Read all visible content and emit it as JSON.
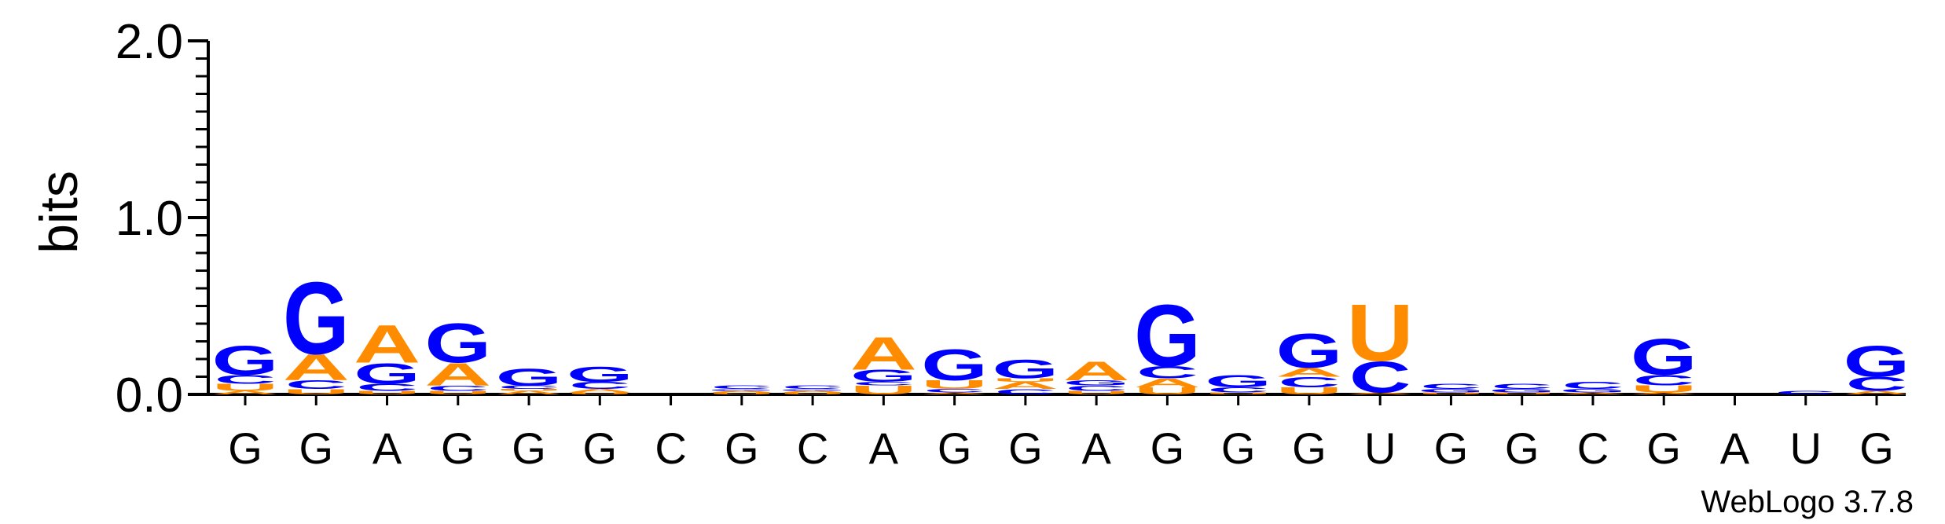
{
  "chart_data": {
    "type": "sequence-logo",
    "ylabel": "bits",
    "ylim": [
      0,
      2.0
    ],
    "yticks": [
      "0.0",
      "1.0",
      "2.0"
    ],
    "x_labels": [
      "G",
      "G",
      "A",
      "G",
      "G",
      "G",
      "C",
      "G",
      "C",
      "A",
      "G",
      "G",
      "A",
      "G",
      "G",
      "G",
      "U",
      "G",
      "G",
      "C",
      "G",
      "A",
      "U",
      "G"
    ],
    "stacks": [
      [
        {
          "base": "A",
          "bits": 0.02
        },
        {
          "base": "U",
          "bits": 0.04
        },
        {
          "base": "C",
          "bits": 0.05
        },
        {
          "base": "G",
          "bits": 0.17
        }
      ],
      [
        {
          "base": "U",
          "bits": 0.03
        },
        {
          "base": "C",
          "bits": 0.05
        },
        {
          "base": "A",
          "bits": 0.15
        },
        {
          "base": "G",
          "bits": 0.42
        }
      ],
      [
        {
          "base": "U",
          "bits": 0.02
        },
        {
          "base": "C",
          "bits": 0.04
        },
        {
          "base": "G",
          "bits": 0.12
        },
        {
          "base": "A",
          "bits": 0.22
        }
      ],
      [
        {
          "base": "U",
          "bits": 0.02
        },
        {
          "base": "C",
          "bits": 0.03
        },
        {
          "base": "A",
          "bits": 0.13
        },
        {
          "base": "G",
          "bits": 0.23
        }
      ],
      [
        {
          "base": "A",
          "bits": 0.02
        },
        {
          "base": "U",
          "bits": 0.01
        },
        {
          "base": "C",
          "bits": 0.02
        },
        {
          "base": "G",
          "bits": 0.1
        }
      ],
      [
        {
          "base": "U",
          "bits": 0.01
        },
        {
          "base": "A",
          "bits": 0.02
        },
        {
          "base": "C",
          "bits": 0.04
        },
        {
          "base": "G",
          "bits": 0.09
        }
      ],
      [],
      [
        {
          "base": "U",
          "bits": 0.01
        },
        {
          "base": "A",
          "bits": 0.01
        },
        {
          "base": "G",
          "bits": 0.01
        },
        {
          "base": "C",
          "bits": 0.02
        }
      ],
      [
        {
          "base": "U",
          "bits": 0.01
        },
        {
          "base": "A",
          "bits": 0.01
        },
        {
          "base": "G",
          "bits": 0.01
        },
        {
          "base": "C",
          "bits": 0.02
        }
      ],
      [
        {
          "base": "U",
          "bits": 0.05
        },
        {
          "base": "C",
          "bits": 0.02
        },
        {
          "base": "G",
          "bits": 0.07
        },
        {
          "base": "A",
          "bits": 0.19
        }
      ],
      [
        {
          "base": "A",
          "bits": 0.01
        },
        {
          "base": "C",
          "bits": 0.02
        },
        {
          "base": "U",
          "bits": 0.05
        },
        {
          "base": "G",
          "bits": 0.18
        }
      ],
      [
        {
          "base": "C",
          "bits": 0.03
        },
        {
          "base": "A",
          "bits": 0.04
        },
        {
          "base": "U",
          "bits": 0.02
        },
        {
          "base": "G",
          "bits": 0.11
        }
      ],
      [
        {
          "base": "U",
          "bits": 0.02
        },
        {
          "base": "C",
          "bits": 0.03
        },
        {
          "base": "G",
          "bits": 0.03
        },
        {
          "base": "A",
          "bits": 0.11
        }
      ],
      [
        {
          "base": "U",
          "bits": 0.04
        },
        {
          "base": "A",
          "bits": 0.05
        },
        {
          "base": "C",
          "bits": 0.07
        },
        {
          "base": "G",
          "bits": 0.36
        }
      ],
      [
        {
          "base": "U",
          "bits": 0.01
        },
        {
          "base": "C",
          "bits": 0.03
        },
        {
          "base": "G",
          "bits": 0.07
        }
      ],
      [
        {
          "base": "U",
          "bits": 0.04
        },
        {
          "base": "C",
          "bits": 0.06
        },
        {
          "base": "A",
          "bits": 0.05
        },
        {
          "base": "G",
          "bits": 0.2
        }
      ],
      [
        {
          "base": "A",
          "bits": 0.01
        },
        {
          "base": "C",
          "bits": 0.18
        },
        {
          "base": "U",
          "bits": 0.33
        }
      ],
      [
        {
          "base": "U",
          "bits": 0.01
        },
        {
          "base": "G",
          "bits": 0.02
        },
        {
          "base": "C",
          "bits": 0.03
        }
      ],
      [
        {
          "base": "U",
          "bits": 0.01
        },
        {
          "base": "G",
          "bits": 0.02
        },
        {
          "base": "C",
          "bits": 0.03
        }
      ],
      [
        {
          "base": "A",
          "bits": 0.01
        },
        {
          "base": "G",
          "bits": 0.02
        },
        {
          "base": "C",
          "bits": 0.04
        }
      ],
      [
        {
          "base": "A",
          "bits": 0.01
        },
        {
          "base": "U",
          "bits": 0.04
        },
        {
          "base": "C",
          "bits": 0.06
        },
        {
          "base": "G",
          "bits": 0.21
        }
      ],
      [],
      [
        {
          "base": "C",
          "bits": 0.02
        }
      ],
      [
        {
          "base": "A",
          "bits": 0.02
        },
        {
          "base": "C",
          "bits": 0.08
        },
        {
          "base": "G",
          "bits": 0.18
        }
      ]
    ],
    "colors": {
      "G": "#0000ff",
      "A": "#ff8c00",
      "C": "#0000ff",
      "U": "#ff8c00"
    }
  },
  "credit": "WebLogo 3.7.8"
}
